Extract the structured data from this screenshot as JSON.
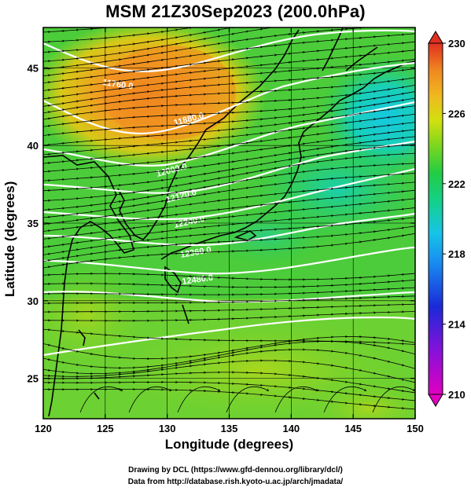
{
  "title": "MSM 21Z30Sep2023 (200.0hPa)",
  "credits": {
    "line1": "Drawing by DCL (https://www.gfd-dennou.org/library/dcl/)",
    "line2": "Data from http://database.rish.kyoto-u.ac.jp/arch/jmadata/"
  },
  "chart_data": {
    "type": "heatmap",
    "title": "MSM 21Z30Sep2023 (200.0hPa)",
    "xlabel": "Longitude (degrees)",
    "ylabel": "Latitude  (degrees)",
    "xlim": [
      120,
      150
    ],
    "ylim": [
      22.4,
      47.6
    ],
    "x_ticks": [
      120,
      125,
      130,
      135,
      140,
      145,
      150
    ],
    "y_ticks": [
      25,
      30,
      35,
      40,
      45
    ],
    "grid": true,
    "colorbar": {
      "min": 210,
      "max": 230,
      "ticks": [
        210,
        214,
        218,
        222,
        226,
        230
      ],
      "extend": "both",
      "placement": "right"
    },
    "shaded_field_samples": [
      {
        "lon": 128.0,
        "lat": 44.0,
        "value": 227.0
      },
      {
        "lon": 130.0,
        "lat": 45.0,
        "value": 227.5
      },
      {
        "lon": 124.0,
        "lat": 42.0,
        "value": 225.5
      },
      {
        "lon": 146.0,
        "lat": 43.0,
        "value": 219.5
      },
      {
        "lon": 148.0,
        "lat": 42.0,
        "value": 219.0
      },
      {
        "lon": 142.0,
        "lat": 38.0,
        "value": 220.5
      },
      {
        "lon": 128.0,
        "lat": 35.0,
        "value": 222.5
      },
      {
        "lon": 135.0,
        "lat": 27.0,
        "value": 223.0
      },
      {
        "lon": 125.0,
        "lat": 30.0,
        "value": 223.5
      },
      {
        "lon": 140.0,
        "lat": 24.0,
        "value": 223.5
      }
    ],
    "contour_labels": [
      "11760.0",
      "11880.0",
      "12000.0",
      "12120.0",
      "12240.0",
      "12360.0",
      "12480.0"
    ],
    "overlays": [
      "white geopotential height contours",
      "black streamlines (wind)",
      "black coastlines",
      "lat/lon grid"
    ],
    "colors": {
      "magenta": "#e000c0",
      "blue": "#1a2ad8",
      "cyan": "#16c4e8",
      "green": "#22cc44",
      "yellow_green": "#c8e010",
      "orange": "#f09020",
      "red": "#e03020"
    }
  }
}
